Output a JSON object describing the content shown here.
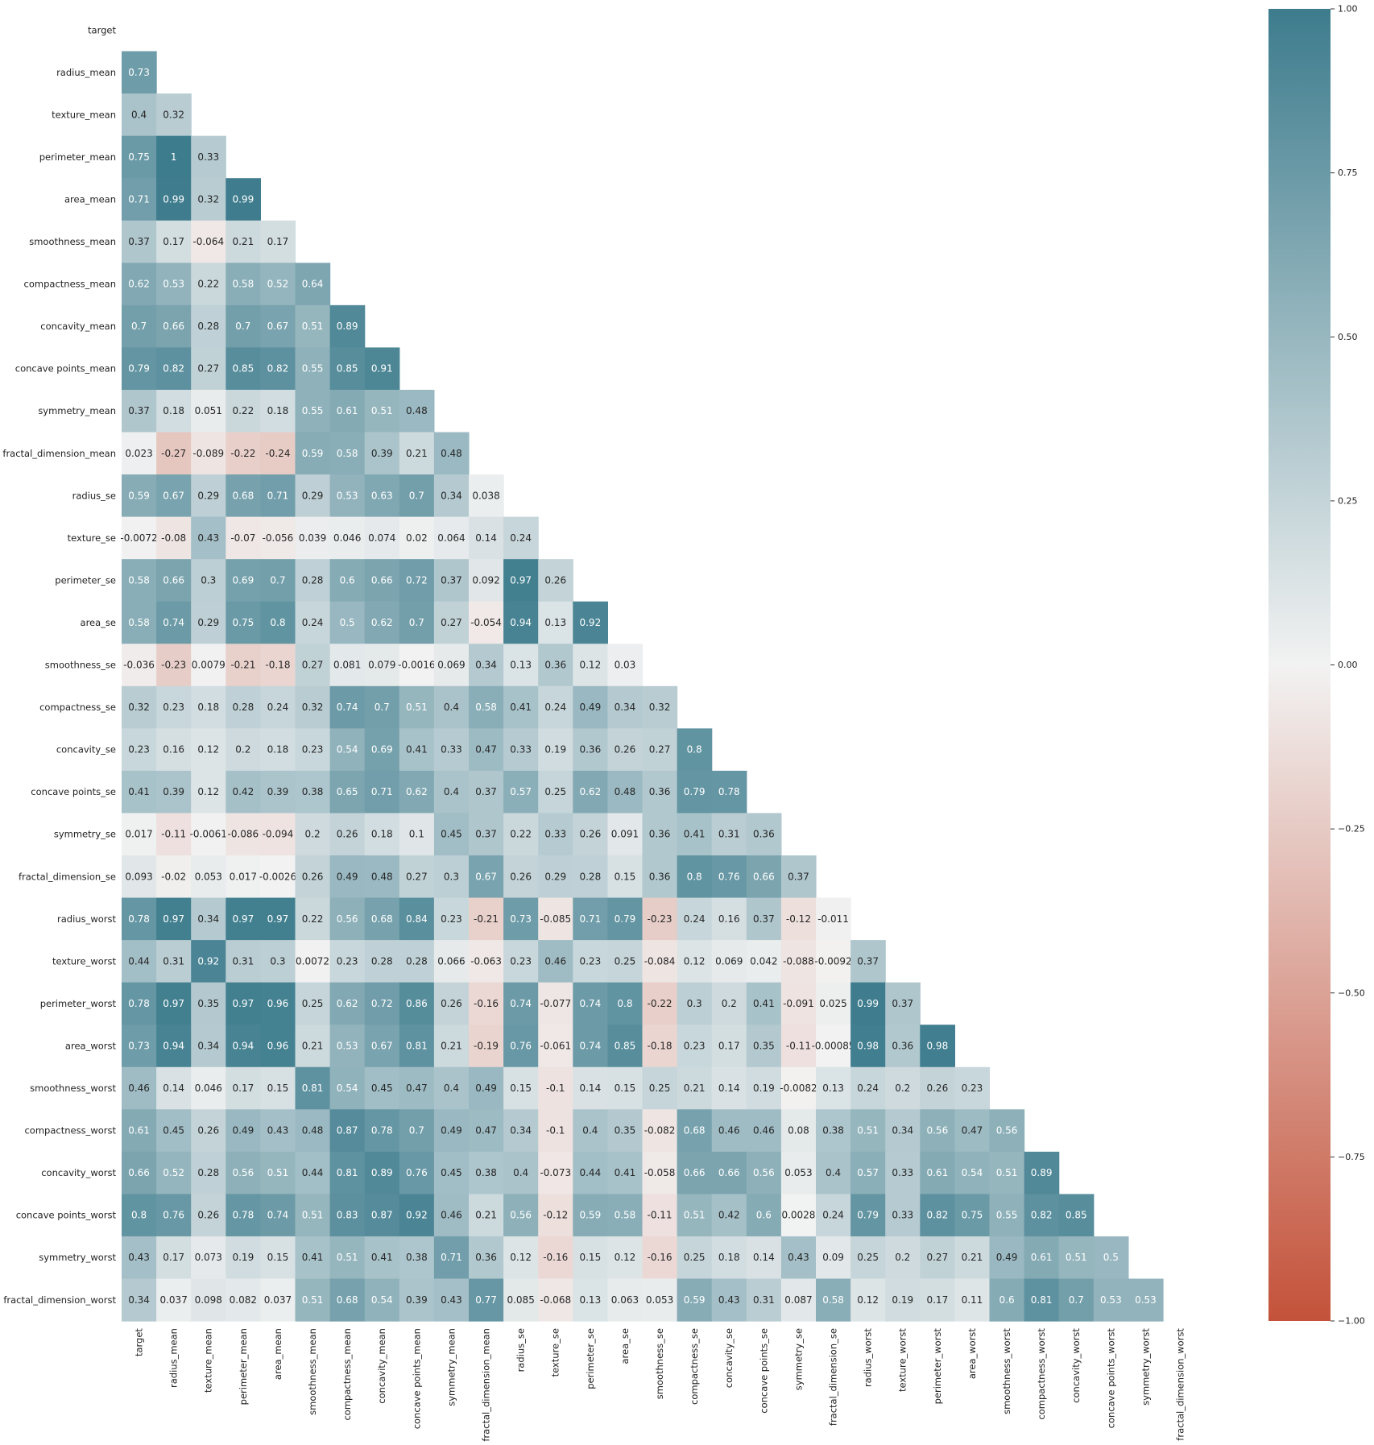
{
  "chart_data": {
    "type": "heatmap",
    "mask": "upper-triangle-including-diagonal",
    "labels": [
      "target",
      "radius_mean",
      "texture_mean",
      "perimeter_mean",
      "area_mean",
      "smoothness_mean",
      "compactness_mean",
      "concavity_mean",
      "concave points_mean",
      "symmetry_mean",
      "fractal_dimension_mean",
      "radius_se",
      "texture_se",
      "perimeter_se",
      "area_se",
      "smoothness_se",
      "compactness_se",
      "concavity_se",
      "concave points_se",
      "symmetry_se",
      "fractal_dimension_se",
      "radius_worst",
      "texture_worst",
      "perimeter_worst",
      "area_worst",
      "smoothness_worst",
      "compactness_worst",
      "concavity_worst",
      "concave points_worst",
      "symmetry_worst",
      "fractal_dimension_worst"
    ],
    "rows": [
      [],
      [
        "0.73"
      ],
      [
        "0.4",
        "0.32"
      ],
      [
        "0.75",
        "1",
        "0.33"
      ],
      [
        "0.71",
        "0.99",
        "0.32",
        "0.99"
      ],
      [
        "0.37",
        "0.17",
        "-0.064",
        "0.21",
        "0.17"
      ],
      [
        "0.62",
        "0.53",
        "0.22",
        "0.58",
        "0.52",
        "0.64"
      ],
      [
        "0.7",
        "0.66",
        "0.28",
        "0.7",
        "0.67",
        "0.51",
        "0.89"
      ],
      [
        "0.79",
        "0.82",
        "0.27",
        "0.85",
        "0.82",
        "0.55",
        "0.85",
        "0.91"
      ],
      [
        "0.37",
        "0.18",
        "0.051",
        "0.22",
        "0.18",
        "0.55",
        "0.61",
        "0.51",
        "0.48"
      ],
      [
        "0.023",
        "-0.27",
        "-0.089",
        "-0.22",
        "-0.24",
        "0.59",
        "0.58",
        "0.39",
        "0.21",
        "0.48"
      ],
      [
        "0.59",
        "0.67",
        "0.29",
        "0.68",
        "0.71",
        "0.29",
        "0.53",
        "0.63",
        "0.7",
        "0.34",
        "0.038"
      ],
      [
        "-0.0072",
        "-0.08",
        "0.43",
        "-0.07",
        "-0.056",
        "0.039",
        "0.046",
        "0.074",
        "0.02",
        "0.064",
        "0.14",
        "0.24"
      ],
      [
        "0.58",
        "0.66",
        "0.3",
        "0.69",
        "0.7",
        "0.28",
        "0.6",
        "0.66",
        "0.72",
        "0.37",
        "0.092",
        "0.97",
        "0.26"
      ],
      [
        "0.58",
        "0.74",
        "0.29",
        "0.75",
        "0.8",
        "0.24",
        "0.5",
        "0.62",
        "0.7",
        "0.27",
        "-0.054",
        "0.94",
        "0.13",
        "0.92"
      ],
      [
        "-0.036",
        "-0.23",
        "0.0079",
        "-0.21",
        "-0.18",
        "0.27",
        "0.081",
        "0.079",
        "-0.0016",
        "0.069",
        "0.34",
        "0.13",
        "0.36",
        "0.12",
        "0.03"
      ],
      [
        "0.32",
        "0.23",
        "0.18",
        "0.28",
        "0.24",
        "0.32",
        "0.74",
        "0.7",
        "0.51",
        "0.4",
        "0.58",
        "0.41",
        "0.24",
        "0.49",
        "0.34",
        "0.32"
      ],
      [
        "0.23",
        "0.16",
        "0.12",
        "0.2",
        "0.18",
        "0.23",
        "0.54",
        "0.69",
        "0.41",
        "0.33",
        "0.47",
        "0.33",
        "0.19",
        "0.36",
        "0.26",
        "0.27",
        "0.8"
      ],
      [
        "0.41",
        "0.39",
        "0.12",
        "0.42",
        "0.39",
        "0.38",
        "0.65",
        "0.71",
        "0.62",
        "0.4",
        "0.37",
        "0.57",
        "0.25",
        "0.62",
        "0.48",
        "0.36",
        "0.79",
        "0.78"
      ],
      [
        "0.017",
        "-0.11",
        "-0.0061",
        "-0.086",
        "-0.094",
        "0.2",
        "0.26",
        "0.18",
        "0.1",
        "0.45",
        "0.37",
        "0.22",
        "0.33",
        "0.26",
        "0.091",
        "0.36",
        "0.41",
        "0.31",
        "0.36"
      ],
      [
        "0.093",
        "-0.02",
        "0.053",
        "0.017",
        "-0.0026",
        "0.26",
        "0.49",
        "0.48",
        "0.27",
        "0.3",
        "0.67",
        "0.26",
        "0.29",
        "0.28",
        "0.15",
        "0.36",
        "0.8",
        "0.76",
        "0.66",
        "0.37"
      ],
      [
        "0.78",
        "0.97",
        "0.34",
        "0.97",
        "0.97",
        "0.22",
        "0.56",
        "0.68",
        "0.84",
        "0.23",
        "-0.21",
        "0.73",
        "-0.085",
        "0.71",
        "0.79",
        "-0.23",
        "0.24",
        "0.16",
        "0.37",
        "-0.12",
        "-0.011"
      ],
      [
        "0.44",
        "0.31",
        "0.92",
        "0.31",
        "0.3",
        "0.0072",
        "0.23",
        "0.28",
        "0.28",
        "0.066",
        "-0.063",
        "0.23",
        "0.46",
        "0.23",
        "0.25",
        "-0.084",
        "0.12",
        "0.069",
        "0.042",
        "-0.088",
        "-0.0092",
        "0.37"
      ],
      [
        "0.78",
        "0.97",
        "0.35",
        "0.97",
        "0.96",
        "0.25",
        "0.62",
        "0.72",
        "0.86",
        "0.26",
        "-0.16",
        "0.74",
        "-0.077",
        "0.74",
        "0.8",
        "-0.22",
        "0.3",
        "0.2",
        "0.41",
        "-0.091",
        "0.025",
        "0.99",
        "0.37"
      ],
      [
        "0.73",
        "0.94",
        "0.34",
        "0.94",
        "0.96",
        "0.21",
        "0.53",
        "0.67",
        "0.81",
        "0.21",
        "-0.19",
        "0.76",
        "-0.061",
        "0.74",
        "0.85",
        "-0.18",
        "0.23",
        "0.17",
        "0.35",
        "-0.11",
        "-0.00085",
        "0.98",
        "0.36",
        "0.98"
      ],
      [
        "0.46",
        "0.14",
        "0.046",
        "0.17",
        "0.15",
        "0.81",
        "0.54",
        "0.45",
        "0.47",
        "0.4",
        "0.49",
        "0.15",
        "-0.1",
        "0.14",
        "0.15",
        "0.25",
        "0.21",
        "0.14",
        "0.19",
        "-0.0082",
        "0.13",
        "0.24",
        "0.2",
        "0.26",
        "0.23"
      ],
      [
        "0.61",
        "0.45",
        "0.26",
        "0.49",
        "0.43",
        "0.48",
        "0.87",
        "0.78",
        "0.7",
        "0.49",
        "0.47",
        "0.34",
        "-0.1",
        "0.4",
        "0.35",
        "-0.082",
        "0.68",
        "0.46",
        "0.46",
        "0.08",
        "0.38",
        "0.51",
        "0.34",
        "0.56",
        "0.47",
        "0.56"
      ],
      [
        "0.66",
        "0.52",
        "0.28",
        "0.56",
        "0.51",
        "0.44",
        "0.81",
        "0.89",
        "0.76",
        "0.45",
        "0.38",
        "0.4",
        "-0.073",
        "0.44",
        "0.41",
        "-0.058",
        "0.66",
        "0.66",
        "0.56",
        "0.053",
        "0.4",
        "0.57",
        "0.33",
        "0.61",
        "0.54",
        "0.51",
        "0.89"
      ],
      [
        "0.8",
        "0.76",
        "0.26",
        "0.78",
        "0.74",
        "0.51",
        "0.83",
        "0.87",
        "0.92",
        "0.46",
        "0.21",
        "0.56",
        "-0.12",
        "0.59",
        "0.58",
        "-0.11",
        "0.51",
        "0.42",
        "0.6",
        "0.0028",
        "0.24",
        "0.79",
        "0.33",
        "0.82",
        "0.75",
        "0.55",
        "0.82",
        "0.85"
      ],
      [
        "0.43",
        "0.17",
        "0.073",
        "0.19",
        "0.15",
        "0.41",
        "0.51",
        "0.41",
        "0.38",
        "0.71",
        "0.36",
        "0.12",
        "-0.16",
        "0.15",
        "0.12",
        "-0.16",
        "0.25",
        "0.18",
        "0.14",
        "0.43",
        "0.09",
        "0.25",
        "0.2",
        "0.27",
        "0.21",
        "0.49",
        "0.61",
        "0.51",
        "0.5"
      ],
      [
        "0.34",
        "0.037",
        "0.098",
        "0.082",
        "0.037",
        "0.51",
        "0.68",
        "0.54",
        "0.39",
        "0.43",
        "0.77",
        "0.085",
        "-0.068",
        "0.13",
        "0.063",
        "0.053",
        "0.59",
        "0.43",
        "0.31",
        "0.087",
        "0.58",
        "0.12",
        "0.19",
        "0.17",
        "0.11",
        "0.6",
        "0.81",
        "0.7",
        "0.53",
        "0.53"
      ]
    ],
    "vmin": -1,
    "vmax": 1,
    "colorbar_ticks": [
      "1.00",
      "0.75",
      "0.50",
      "0.25",
      "0.00",
      "−0.25",
      "−0.50",
      "−0.75",
      "−1.00"
    ],
    "colormap": {
      "negative": "#c4523a",
      "center": "#f2f2f2",
      "positive": "#3d7c8d"
    }
  }
}
